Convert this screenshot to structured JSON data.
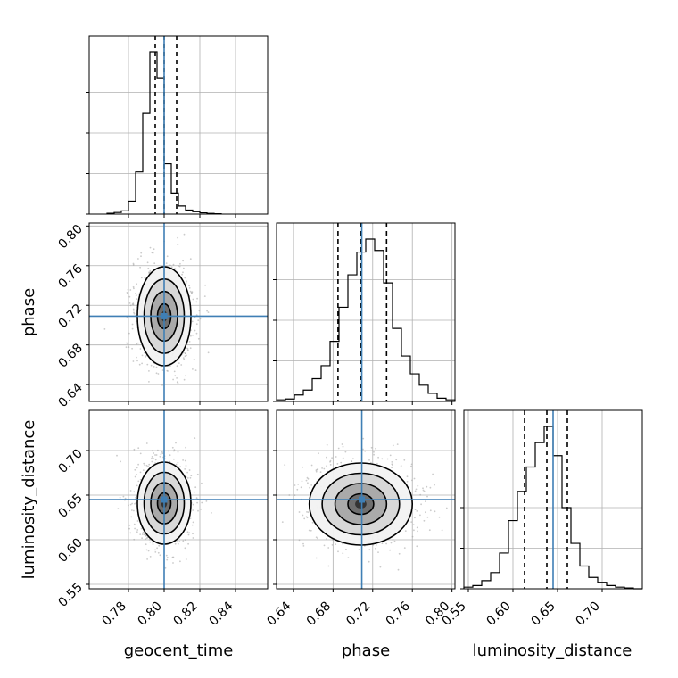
{
  "chart_data": {
    "type": "corner",
    "parameters": [
      "geocent_time",
      "phase",
      "luminosity_distance"
    ],
    "injected_values": {
      "geocent_time": 0.8,
      "phase": 0.709,
      "luminosity_distance": 0.645
    },
    "quantiles": {
      "geocent_time": [
        0.795,
        0.8,
        0.807
      ],
      "phase": [
        0.685,
        0.708,
        0.734
      ],
      "luminosity_distance": [
        0.613,
        0.638,
        0.661
      ]
    },
    "axis_ranges": {
      "geocent_time": [
        0.758,
        0.858
      ],
      "phase": [
        0.623,
        0.803
      ],
      "luminosity_distance": [
        0.545,
        0.745
      ]
    },
    "ticks": {
      "geocent_time": [
        "0.78",
        "0.80",
        "0.82",
        "0.84"
      ],
      "phase": [
        "0.64",
        "0.68",
        "0.72",
        "0.76",
        "0.80"
      ],
      "luminosity_distance_x": [
        "0.55",
        "0.60",
        "0.65",
        "0.70"
      ],
      "luminosity_distance_y": [
        "0.55",
        "0.60",
        "0.65",
        "0.70"
      ]
    },
    "histograms": {
      "geocent_time": {
        "bin_edges": [
          0.768,
          0.772,
          0.776,
          0.78,
          0.784,
          0.788,
          0.792,
          0.796,
          0.8,
          0.804,
          0.808,
          0.812,
          0.816,
          0.82,
          0.824,
          0.828,
          0.832
        ],
        "heights": [
          0.005,
          0.01,
          0.02,
          0.08,
          0.26,
          0.62,
          1.0,
          0.84,
          0.31,
          0.13,
          0.05,
          0.025,
          0.015,
          0.008,
          0.004,
          0.002
        ]
      },
      "phase": {
        "bin_edges": [
          0.623,
          0.632,
          0.641,
          0.65,
          0.659,
          0.668,
          0.677,
          0.686,
          0.695,
          0.704,
          0.713,
          0.722,
          0.731,
          0.74,
          0.749,
          0.758,
          0.767,
          0.776,
          0.785,
          0.794,
          0.803
        ],
        "heights": [
          0.01,
          0.015,
          0.04,
          0.07,
          0.14,
          0.22,
          0.37,
          0.58,
          0.78,
          0.92,
          1.0,
          0.93,
          0.73,
          0.45,
          0.28,
          0.17,
          0.1,
          0.05,
          0.02,
          0.01
        ]
      },
      "luminosity_distance": {
        "bin_edges": [
          0.545,
          0.555,
          0.565,
          0.575,
          0.585,
          0.595,
          0.605,
          0.615,
          0.625,
          0.635,
          0.645,
          0.655,
          0.665,
          0.675,
          0.685,
          0.695,
          0.705,
          0.715,
          0.725,
          0.735,
          0.745
        ],
        "heights": [
          0.01,
          0.02,
          0.05,
          0.1,
          0.22,
          0.42,
          0.6,
          0.75,
          0.9,
          1.0,
          0.82,
          0.5,
          0.28,
          0.14,
          0.07,
          0.04,
          0.02,
          0.01,
          0.005,
          0.0
        ]
      }
    },
    "gaussian_2d": {
      "geocent_time__phase": {
        "mean": [
          0.8,
          0.709
        ],
        "sd": [
          0.0075,
          0.025
        ]
      },
      "geocent_time__luminosity_distance": {
        "mean": [
          0.8,
          0.641
        ],
        "sd": [
          0.0075,
          0.023
        ]
      },
      "phase__luminosity_distance": {
        "mean": [
          0.708,
          0.64
        ],
        "sd": [
          0.026,
          0.023
        ]
      }
    },
    "grid": true,
    "colors": {
      "truth": "#3f7fb5",
      "hist": "#000000",
      "quantile": "#000000",
      "grid": "#b0b0b0",
      "scatter": "#a0a0a0"
    }
  }
}
